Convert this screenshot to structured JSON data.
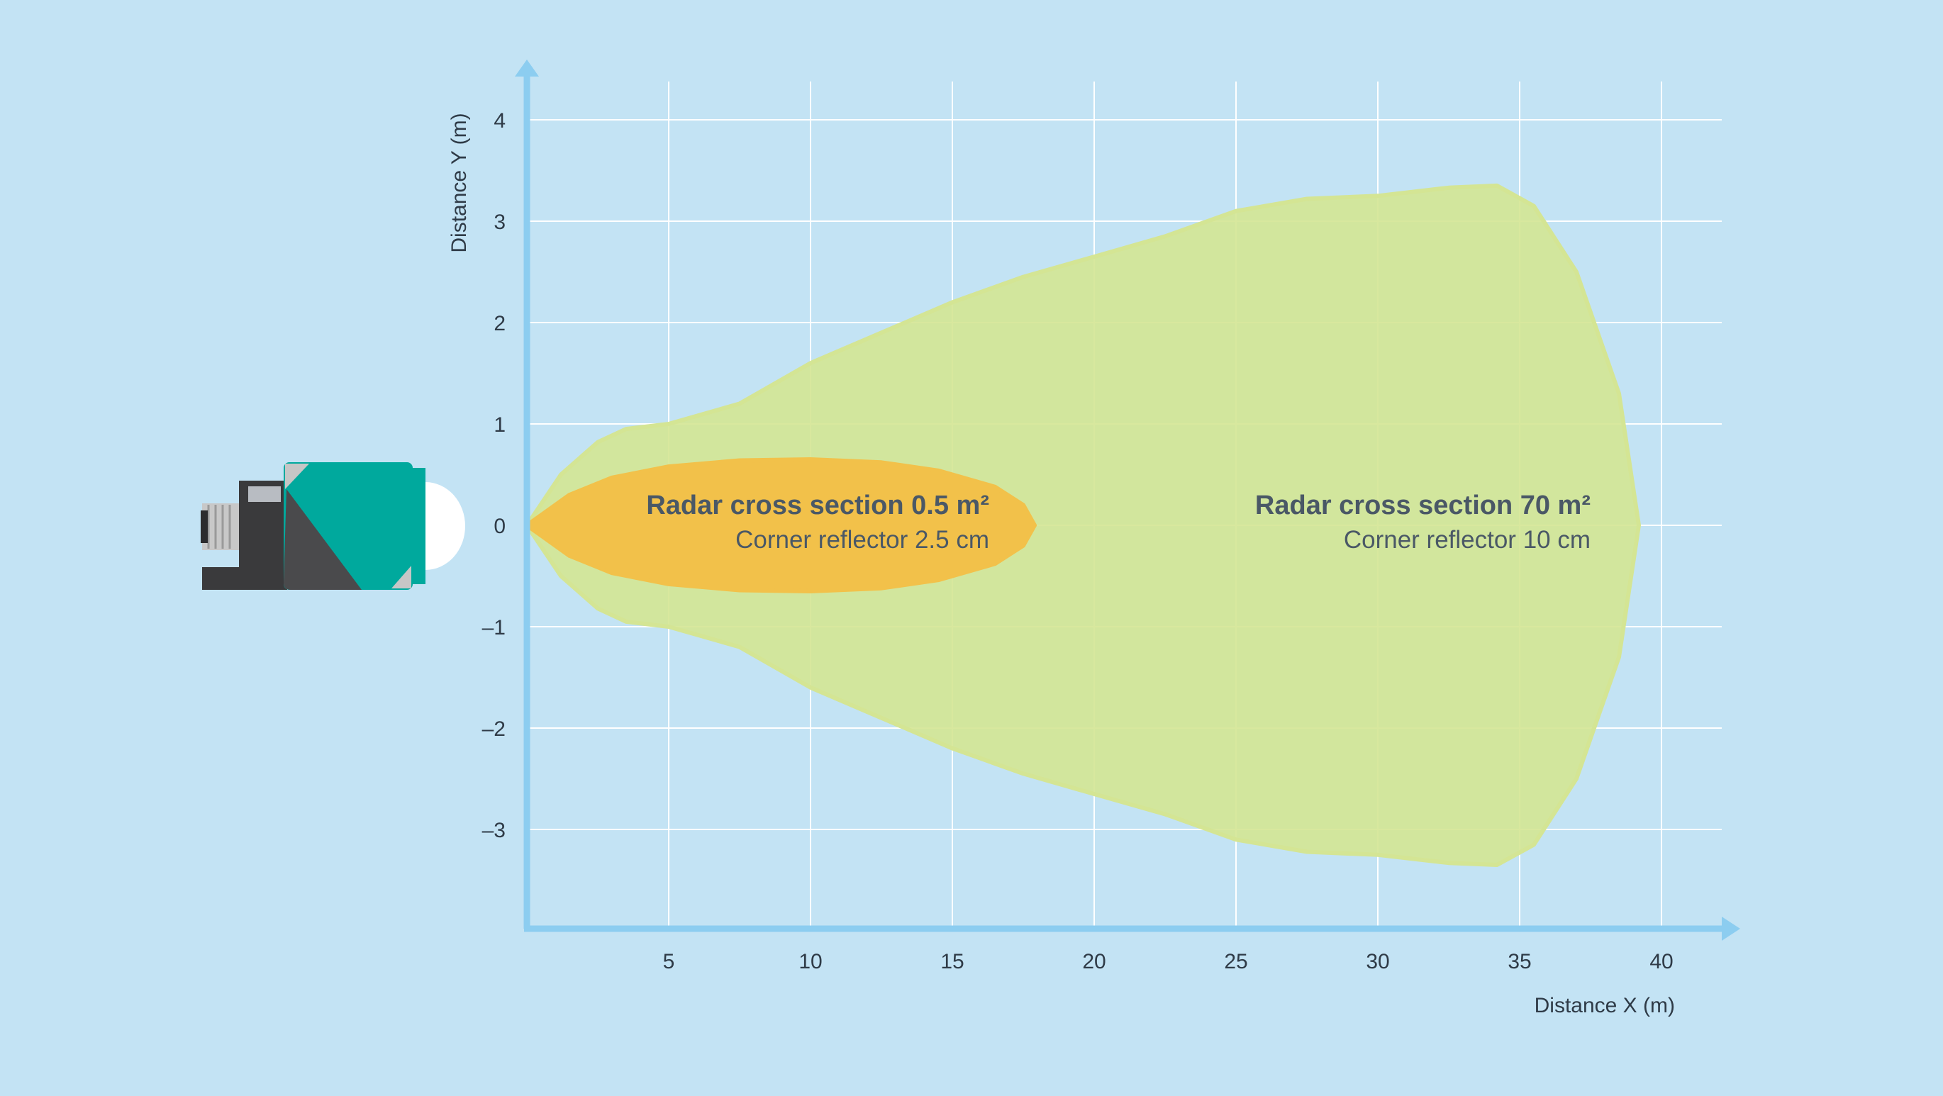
{
  "colors": {
    "background": "#c3e3f4",
    "grid": "#ffffff",
    "axis": "#8ccdf0",
    "large_zone": "#d4e594",
    "small_zone": "#f2c14a",
    "sensor_teal": "#00a99d",
    "sensor_dark": "#3a3a3c",
    "text": "#2f3b47",
    "annotation_text": "#4a5866"
  },
  "sensor": {
    "icon": "radar-sensor-icon"
  },
  "chart_data": {
    "type": "area",
    "title": "",
    "xlabel": "Distance X (m)",
    "ylabel": "Distance Y (m)",
    "xlim": [
      0,
      42
    ],
    "ylim": [
      -4,
      4.4
    ],
    "x_ticks": [
      5,
      10,
      15,
      20,
      25,
      30,
      35,
      40
    ],
    "y_ticks": [
      4,
      3,
      2,
      1,
      0,
      -1,
      -2,
      -3
    ],
    "x_tick_labels": [
      "5",
      "10",
      "15",
      "20",
      "25",
      "30",
      "35",
      "40"
    ],
    "y_tick_labels": [
      "4",
      "3",
      "2",
      "1",
      "0",
      "–1",
      "–2",
      "–3"
    ],
    "grid": true,
    "series": [
      {
        "name": "Radar cross section 70 m²",
        "color": "#d4e594",
        "x": [
          0,
          1.2,
          2.5,
          3.5,
          5,
          7.5,
          10,
          12.5,
          15,
          17.5,
          20,
          22.5,
          25,
          27.5,
          30,
          32.5,
          34.2,
          35.5,
          37,
          38.5,
          39.2
        ],
        "y_upper": [
          0,
          0.5,
          0.82,
          0.95,
          1.0,
          1.2,
          1.6,
          1.9,
          2.2,
          2.45,
          2.65,
          2.85,
          3.1,
          3.22,
          3.25,
          3.33,
          3.35,
          3.15,
          2.5,
          1.3,
          0
        ],
        "y_lower": [
          0,
          -0.5,
          -0.82,
          -0.95,
          -1.0,
          -1.2,
          -1.6,
          -1.9,
          -2.2,
          -2.45,
          -2.65,
          -2.85,
          -3.1,
          -3.22,
          -3.25,
          -3.33,
          -3.35,
          -3.15,
          -2.5,
          -1.3,
          0
        ],
        "annotation": {
          "title": "Radar cross section 70 m²",
          "subtitle": "Corner reflector 10 cm",
          "anchor_x": 37.5,
          "anchor_y": 0.02
        }
      },
      {
        "name": "Radar cross section 0.5 m²",
        "color": "#f2c14a",
        "x": [
          0,
          1.5,
          3,
          5,
          7.5,
          10,
          12.5,
          14.5,
          16.5,
          17.5,
          17.9
        ],
        "y_upper": [
          0,
          0.3,
          0.47,
          0.58,
          0.64,
          0.65,
          0.62,
          0.54,
          0.38,
          0.2,
          0
        ],
        "y_lower": [
          0,
          -0.3,
          -0.47,
          -0.58,
          -0.64,
          -0.65,
          -0.62,
          -0.54,
          -0.38,
          -0.2,
          0
        ],
        "annotation": {
          "title": "Radar cross section 0.5 m²",
          "subtitle": "Corner reflector 2.5 cm",
          "anchor_x": 16.3,
          "anchor_y": 0.02
        }
      }
    ]
  }
}
